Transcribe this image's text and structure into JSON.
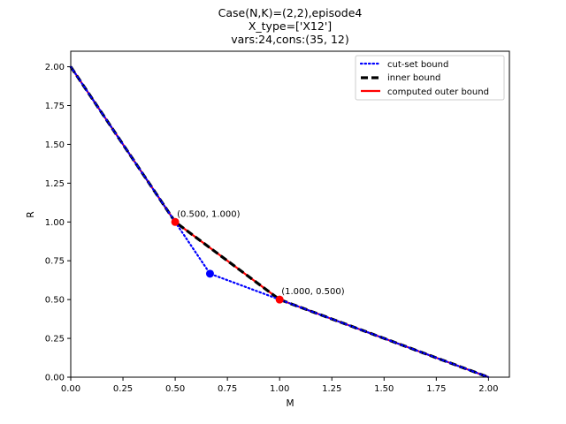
{
  "figure": {
    "background": "#ffffff"
  },
  "chart_data": {
    "type": "line",
    "title_lines": [
      "Case(N,K)=(2,2),episode4",
      "X_type=['X12']",
      "vars:24,cons:(35, 12)"
    ],
    "xlabel": "M",
    "ylabel": "R",
    "xlim": [
      0.0,
      2.1
    ],
    "ylim": [
      0.0,
      2.1
    ],
    "xticks": [
      0.0,
      0.25,
      0.5,
      0.75,
      1.0,
      1.25,
      1.5,
      1.75,
      2.0
    ],
    "xtick_labels": [
      "0.00",
      "0.25",
      "0.50",
      "0.75",
      "1.00",
      "1.25",
      "1.50",
      "1.75",
      "2.00"
    ],
    "yticks": [
      0.0,
      0.25,
      0.5,
      0.75,
      1.0,
      1.25,
      1.5,
      1.75,
      2.0
    ],
    "ytick_labels": [
      "0.00",
      "0.25",
      "0.50",
      "0.75",
      "1.00",
      "1.25",
      "1.50",
      "1.75",
      "2.00"
    ],
    "grid": false,
    "legend_position": "top-right",
    "series": [
      {
        "name": "cut-set bound",
        "color": "#0000ff",
        "style": "dotted",
        "marker": "circle",
        "x": [
          0.0,
          0.5,
          0.6667,
          1.0,
          2.0
        ],
        "y": [
          2.0,
          1.0,
          0.6667,
          0.5,
          0.0
        ]
      },
      {
        "name": "inner bound",
        "color": "#000000",
        "style": "dashed",
        "marker": "none",
        "x": [
          0.0,
          0.5,
          1.0,
          2.0
        ],
        "y": [
          2.0,
          1.0,
          0.5,
          0.0
        ]
      },
      {
        "name": "computed outer bound",
        "color": "#ff0000",
        "style": "solid",
        "marker": "circle",
        "x": [
          0.0,
          0.5,
          1.0,
          2.0
        ],
        "y": [
          2.0,
          1.0,
          0.5,
          0.0
        ]
      }
    ],
    "annotations": [
      {
        "text": "(0.500, 1.000)",
        "x": 0.5,
        "y": 1.0
      },
      {
        "text": "(1.000, 0.500)",
        "x": 1.0,
        "y": 0.5
      }
    ]
  }
}
